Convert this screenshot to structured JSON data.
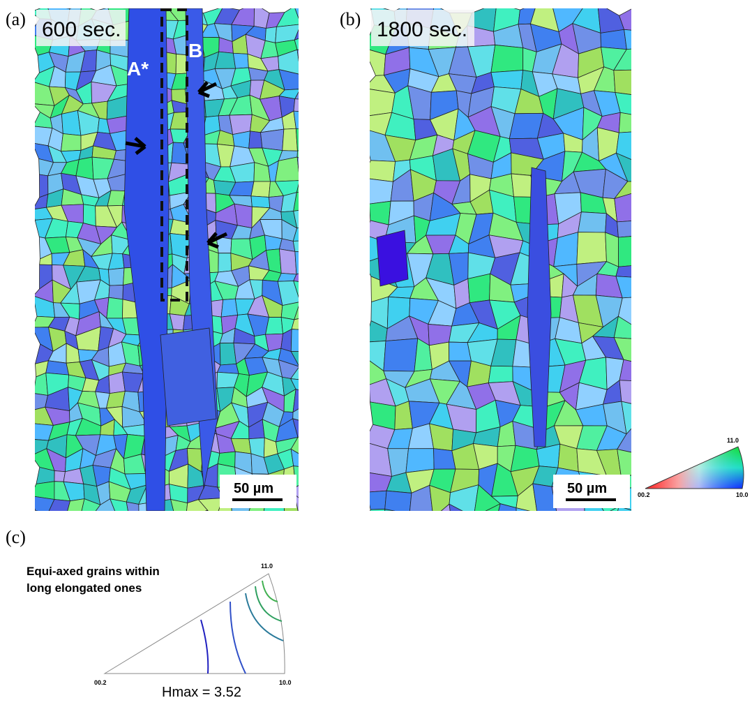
{
  "panels": [
    {
      "label": "(a)",
      "time": "600 sec.",
      "markers": [
        "A*",
        "B"
      ],
      "scale_bar": "50 µm"
    },
    {
      "label": "(b)",
      "time": "1800 sec.",
      "scale_bar": "50 µm"
    }
  ],
  "color_key": {
    "corners": [
      "11.0",
      "00.2",
      "10.0"
    ]
  },
  "panel_c": {
    "label": "(c)",
    "caption": [
      "Equi-axed grains within",
      "long elongated ones"
    ],
    "corners": [
      "11.0",
      "00.2",
      "10.0"
    ],
    "annotation": "Hmax = 3.52"
  }
}
